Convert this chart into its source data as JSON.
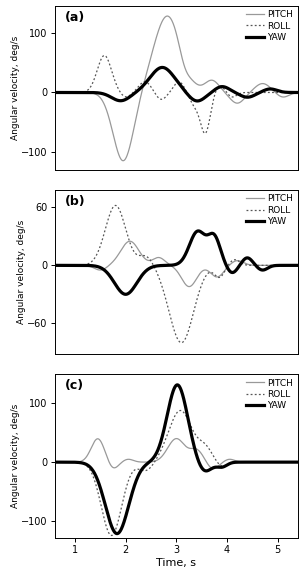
{
  "xlabel": "Time, s",
  "ylabel": "Angular velocity, deg/s",
  "xlim": [
    0.6,
    5.4
  ],
  "xticks": [
    1,
    2,
    3,
    4,
    5
  ],
  "panels": [
    {
      "label": "(a)",
      "ylim": [
        -130,
        145
      ],
      "yticks": [
        -100,
        0,
        100
      ]
    },
    {
      "label": "(b)",
      "ylim": [
        -92,
        78
      ],
      "yticks": [
        -60,
        0,
        60
      ]
    },
    {
      "label": "(c)",
      "ylim": [
        -130,
        150
      ],
      "yticks": [
        -100,
        0,
        100
      ]
    }
  ],
  "pitch_color": "#999999",
  "roll_color": "#555555",
  "yaw_color": "#000000",
  "pitch_lw": 0.9,
  "roll_lw": 0.9,
  "yaw_lw": 2.3
}
